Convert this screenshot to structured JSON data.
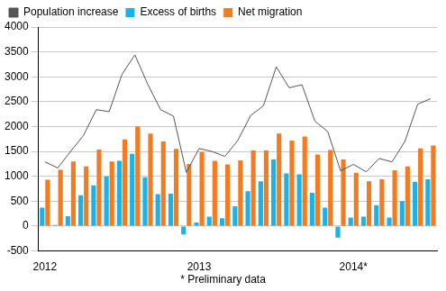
{
  "chart_data": {
    "type": "bar",
    "categories": [
      "2012",
      null,
      null,
      null,
      null,
      null,
      null,
      null,
      null,
      null,
      null,
      null,
      "2013",
      null,
      null,
      null,
      null,
      null,
      null,
      null,
      null,
      null,
      null,
      null,
      "2014*",
      null,
      null,
      null,
      null,
      null,
      null
    ],
    "series": [
      {
        "name": "Excess of births",
        "type": "bar",
        "color": "#1ab2e8",
        "values": [
          370,
          20,
          200,
          620,
          820,
          1000,
          1310,
          1450,
          980,
          640,
          650,
          -170,
          70,
          190,
          160,
          400,
          700,
          900,
          1340,
          1060,
          1040,
          670,
          370,
          -230,
          170,
          190,
          420,
          170,
          500,
          890,
          940
        ]
      },
      {
        "name": "Net migration",
        "type": "bar",
        "color": "#f57b20",
        "values": [
          930,
          1130,
          1300,
          1200,
          1540,
          1300,
          1740,
          2000,
          1860,
          1700,
          1550,
          1250,
          1490,
          1310,
          1240,
          1320,
          1520,
          1520,
          1860,
          1720,
          1800,
          1440,
          1530,
          1340,
          1070,
          900,
          940,
          1120,
          1200,
          1560,
          1620
        ]
      },
      {
        "name": "Population increase",
        "type": "line",
        "color": "#555555",
        "line_style": "solid",
        "values": [
          1290,
          1170,
          1500,
          1820,
          2340,
          2300,
          3050,
          3440,
          2850,
          2340,
          2210,
          1080,
          1560,
          1500,
          1400,
          1720,
          2220,
          2420,
          3200,
          2780,
          2840,
          2110,
          1900,
          1110,
          1240,
          1090,
          1360,
          1290,
          1700,
          2450,
          2560
        ]
      }
    ],
    "ylim": [
      -500,
      4000
    ],
    "yticks": [
      -500,
      0,
      500,
      1000,
      1500,
      2000,
      2500,
      3000,
      3500,
      4000
    ],
    "grid": true,
    "legend": "top",
    "annotations": [
      "* Preliminary data"
    ]
  }
}
